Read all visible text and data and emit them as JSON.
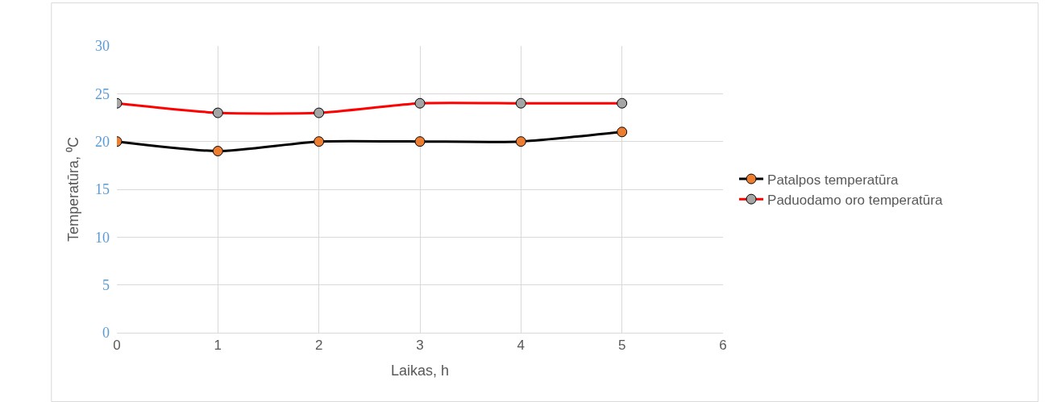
{
  "chart_data": {
    "type": "line",
    "xlabel": "Laikas, h",
    "ylabel": "Temperatūra, ⁰C",
    "x": [
      0,
      1,
      2,
      3,
      4,
      5
    ],
    "series": [
      {
        "name": "Patalpos temperatūra",
        "color": "#000000",
        "colors": [
          "#ed7d31",
          "#ed7d31",
          "#ed7d31",
          "#ed7d31",
          "#ed7d31",
          "#ed7d31"
        ],
        "values": [
          20,
          19,
          20,
          20,
          20,
          21
        ]
      },
      {
        "name": "Paduodamo oro temperatūra",
        "color": "#ff0000",
        "colors": [
          "#a5a5a5",
          "#a5a5a5",
          "#a5a5a5",
          "#a5a5a5",
          "#a5a5a5",
          "#a5a5a5"
        ],
        "values": [
          24,
          23,
          23,
          24,
          24,
          24
        ]
      }
    ],
    "xlim": [
      0,
      6
    ],
    "xticks": [
      0,
      1,
      2,
      3,
      4,
      5,
      6
    ],
    "ylim": [
      0,
      30
    ],
    "yticks": [
      0,
      5,
      10,
      15,
      20,
      25,
      30
    ],
    "grid": true,
    "legend": "right",
    "marker": "circle",
    "line_style": "solid"
  }
}
